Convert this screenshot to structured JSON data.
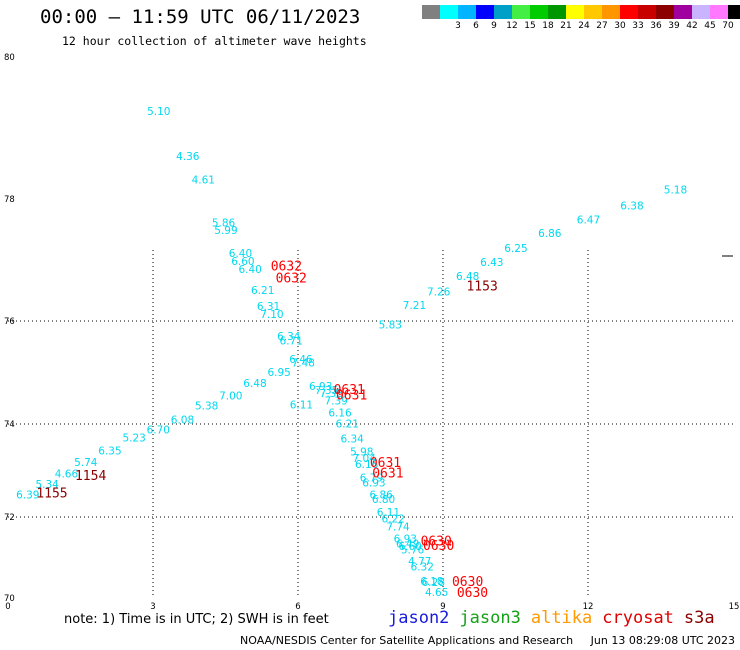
{
  "header": {
    "title": "00:00 – 11:59 UTC 06/11/2023",
    "subtitle": "12 hour collection of altimeter wave heights"
  },
  "legend": {
    "unit_label": "(ft)",
    "bins": [
      {
        "label": "",
        "color": "#808080"
      },
      {
        "label": "3",
        "color": "#00ffff"
      },
      {
        "label": "6",
        "color": "#00b4ff"
      },
      {
        "label": "9",
        "color": "#0000ff"
      },
      {
        "label": "12",
        "color": "#00a0c8"
      },
      {
        "label": "15",
        "color": "#44ee44"
      },
      {
        "label": "18",
        "color": "#00cc00"
      },
      {
        "label": "21",
        "color": "#009600"
      },
      {
        "label": "24",
        "color": "#ffff00"
      },
      {
        "label": "27",
        "color": "#ffc800"
      },
      {
        "label": "30",
        "color": "#ff9600"
      },
      {
        "label": "33",
        "color": "#ff0000"
      },
      {
        "label": "36",
        "color": "#c80000"
      },
      {
        "label": "39",
        "color": "#8c0000"
      },
      {
        "label": "42",
        "color": "#a000a0"
      },
      {
        "label": "45",
        "color": "#c8b4ff"
      },
      {
        "label": "70",
        "color": "#ff78ff"
      },
      {
        "label": "",
        "color": "#000000"
      }
    ]
  },
  "map": {
    "lat_labels": [
      "80",
      "78",
      "76",
      "74",
      "72",
      "70"
    ],
    "lon_labels": [
      "0",
      "3",
      "6",
      "9",
      "12",
      "15"
    ],
    "wave_color": "#00d8f0",
    "time_color_red": "#ff0000",
    "time_color_dark": "#8b0000",
    "wave_heights": [
      {
        "v": "5.10",
        "lon": 3.12,
        "lat": 79.18
      },
      {
        "v": "4.36",
        "lon": 3.72,
        "lat": 78.55
      },
      {
        "v": "4.61",
        "lon": 4.04,
        "lat": 78.22
      },
      {
        "v": "5.86",
        "lon": 4.46,
        "lat": 77.55
      },
      {
        "v": "5.99",
        "lon": 4.51,
        "lat": 77.43
      },
      {
        "v": "6.40",
        "lon": 4.81,
        "lat": 77.05
      },
      {
        "v": "6.60",
        "lon": 4.86,
        "lat": 76.92
      },
      {
        "v": "6.40",
        "lon": 5.01,
        "lat": 76.79
      },
      {
        "v": "6.21",
        "lon": 5.27,
        "lat": 76.44
      },
      {
        "v": "6.31",
        "lon": 5.39,
        "lat": 76.18
      },
      {
        "v": "7.10",
        "lon": 5.46,
        "lat": 76.05
      },
      {
        "v": "6.34",
        "lon": 5.81,
        "lat": 75.63
      },
      {
        "v": "6.71",
        "lon": 5.86,
        "lat": 75.54
      },
      {
        "v": "6.46",
        "lon": 6.06,
        "lat": 75.18
      },
      {
        "v": "7.48",
        "lon": 6.11,
        "lat": 75.12
      },
      {
        "v": "6.93",
        "lon": 6.47,
        "lat": 74.66
      },
      {
        "v": "7.35",
        "lon": 6.59,
        "lat": 74.58
      },
      {
        "v": "7.38",
        "lon": 6.69,
        "lat": 74.52
      },
      {
        "v": "7.39",
        "lon": 6.79,
        "lat": 74.38
      },
      {
        "v": "6.11",
        "lon": 6.07,
        "lat": 74.3
      },
      {
        "v": "6.16",
        "lon": 6.87,
        "lat": 74.15
      },
      {
        "v": "6.21",
        "lon": 7.02,
        "lat": 73.92
      },
      {
        "v": "6.34",
        "lon": 7.12,
        "lat": 73.6
      },
      {
        "v": "5.98",
        "lon": 7.32,
        "lat": 73.32
      },
      {
        "v": "7.04",
        "lon": 7.37,
        "lat": 73.18
      },
      {
        "v": "6.16",
        "lon": 7.42,
        "lat": 73.05
      },
      {
        "v": "6.79",
        "lon": 7.52,
        "lat": 72.76
      },
      {
        "v": "6.93",
        "lon": 7.57,
        "lat": 72.66
      },
      {
        "v": "6.86",
        "lon": 7.72,
        "lat": 72.4
      },
      {
        "v": "6.80",
        "lon": 7.77,
        "lat": 72.3
      },
      {
        "v": "6.11",
        "lon": 7.87,
        "lat": 72.02
      },
      {
        "v": "6.22",
        "lon": 7.97,
        "lat": 71.86
      },
      {
        "v": "7.74",
        "lon": 8.07,
        "lat": 71.67
      },
      {
        "v": "6.93",
        "lon": 8.22,
        "lat": 71.37
      },
      {
        "v": "6.49",
        "lon": 8.27,
        "lat": 71.25
      },
      {
        "v": "6.60",
        "lon": 8.32,
        "lat": 71.18
      },
      {
        "v": "5.76",
        "lon": 8.37,
        "lat": 71.1
      },
      {
        "v": "4.77",
        "lon": 8.52,
        "lat": 70.82
      },
      {
        "v": "6.32",
        "lon": 8.57,
        "lat": 70.68
      },
      {
        "v": "6.18",
        "lon": 8.77,
        "lat": 70.32
      },
      {
        "v": "6.28",
        "lon": 8.8,
        "lat": 70.3
      },
      {
        "v": "4.65",
        "lon": 8.87,
        "lat": 70.05
      },
      {
        "v": "6.39",
        "lon": 0.41,
        "lat": 72.4
      },
      {
        "v": "5.34",
        "lon": 0.81,
        "lat": 72.62
      },
      {
        "v": "4.66",
        "lon": 1.21,
        "lat": 72.85
      },
      {
        "v": "5.74",
        "lon": 1.61,
        "lat": 73.1
      },
      {
        "v": "6.35",
        "lon": 2.11,
        "lat": 73.34
      },
      {
        "v": "5.23",
        "lon": 2.61,
        "lat": 73.62
      },
      {
        "v": "6.70",
        "lon": 3.11,
        "lat": 73.8
      },
      {
        "v": "6.08",
        "lon": 3.61,
        "lat": 74.01
      },
      {
        "v": "5.38",
        "lon": 4.11,
        "lat": 74.28
      },
      {
        "v": "7.00",
        "lon": 4.61,
        "lat": 74.48
      },
      {
        "v": "6.48",
        "lon": 5.11,
        "lat": 74.72
      },
      {
        "v": "6.95",
        "lon": 5.61,
        "lat": 74.93
      },
      {
        "v": "5.83",
        "lon": 7.91,
        "lat": 75.85
      },
      {
        "v": "7.21",
        "lon": 8.41,
        "lat": 76.2
      },
      {
        "v": "7.26",
        "lon": 8.91,
        "lat": 76.42
      },
      {
        "v": "6.48",
        "lon": 9.51,
        "lat": 76.67
      },
      {
        "v": "6.43",
        "lon": 10.01,
        "lat": 76.9
      },
      {
        "v": "6.25",
        "lon": 10.51,
        "lat": 77.13
      },
      {
        "v": "6.86",
        "lon": 11.21,
        "lat": 77.38
      },
      {
        "v": "6.47",
        "lon": 12.01,
        "lat": 77.6
      },
      {
        "v": "6.38",
        "lon": 12.91,
        "lat": 77.83
      },
      {
        "v": "5.18",
        "lon": 13.81,
        "lat": 78.08
      }
    ],
    "time_labels": [
      {
        "t": "0632",
        "lon": 5.76,
        "lat": 76.83,
        "c": "red"
      },
      {
        "t": "0632",
        "lon": 5.86,
        "lat": 76.63,
        "c": "red"
      },
      {
        "t": "0631",
        "lon": 7.06,
        "lat": 74.58,
        "c": "red"
      },
      {
        "t": "0631",
        "lon": 7.11,
        "lat": 74.48,
        "c": "red"
      },
      {
        "t": "0631",
        "lon": 7.81,
        "lat": 73.08,
        "c": "red"
      },
      {
        "t": "0631",
        "lon": 7.86,
        "lat": 72.85,
        "c": "red"
      },
      {
        "t": "0630",
        "lon": 8.86,
        "lat": 71.3,
        "c": "red"
      },
      {
        "t": "0630",
        "lon": 8.91,
        "lat": 71.18,
        "c": "red"
      },
      {
        "t": "0630",
        "lon": 9.51,
        "lat": 70.3,
        "c": "red"
      },
      {
        "t": "0630",
        "lon": 9.61,
        "lat": 70.03,
        "c": "red"
      },
      {
        "t": "1153",
        "lon": 9.81,
        "lat": 76.5,
        "c": "dark"
      },
      {
        "t": "1154",
        "lon": 1.71,
        "lat": 72.8,
        "c": "dark"
      },
      {
        "t": "1155",
        "lon": 0.91,
        "lat": 72.42,
        "c": "dark"
      }
    ]
  },
  "footer": {
    "note": "note:  1) Time is in UTC; 2) SWH is in feet",
    "satellites": [
      {
        "name": "jason2",
        "color": "#1a1adc"
      },
      {
        "name": "jason3",
        "color": "#16a016"
      },
      {
        "name": "altika",
        "color": "#ff9a00"
      },
      {
        "name": "cryosat",
        "color": "#e00000"
      },
      {
        "name": "s3a",
        "color": "#8b0000"
      }
    ],
    "credit": "NOAA/NESDIS Center for Satellite Applications and Research",
    "timestamp": "Jun 13 08:29:08 UTC 2023"
  }
}
